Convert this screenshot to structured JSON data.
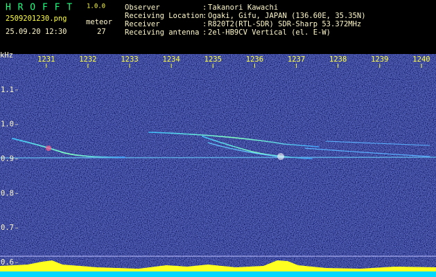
{
  "header": {
    "app": "H R O F F T",
    "version": "1.0.0",
    "file": "2509201230.png",
    "datetime": "25.09.20 12:30",
    "counter_label": "meteor",
    "counter": 27,
    "separator": ":",
    "fields": [
      {
        "label": "Observer",
        "value": "Takanori Kawachi"
      },
      {
        "label": "Receiving Location",
        "value": "Ogaki, Gifu, JAPAN (136.60E, 35.35N)"
      },
      {
        "label": "Receiver",
        "value": "R820T2(RTL-SDR) SDR-Sharp 53.372MHz"
      },
      {
        "label": "Receiving antenna",
        "value": "2el-HB9CV Vertical (el. E-W)"
      }
    ]
  },
  "chart_data": {
    "type": "spectrogram",
    "y_label": "kHz",
    "xlim": [
      1229.89,
      1240.35
    ],
    "xticks": [
      1231,
      1232,
      1233,
      1234,
      1235,
      1236,
      1237,
      1238,
      1239,
      1240
    ],
    "ylim": [
      0.558,
      1.204
    ],
    "yticks": [
      1.1,
      {
        "value": 1.0,
        "label": "1.0"
      },
      0.9,
      0.8,
      0.7,
      0.6
    ]
  }
}
